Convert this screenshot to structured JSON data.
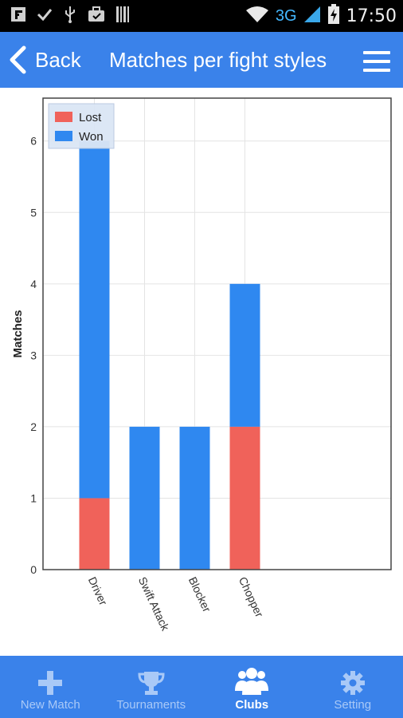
{
  "status_bar": {
    "time": "17:50",
    "network": "3G",
    "icons": [
      "flipboard-icon",
      "check-icon",
      "usb-icon",
      "briefcase-icon",
      "barcode-icon",
      "wifi-icon",
      "signal-icon",
      "battery-charging-icon"
    ]
  },
  "header": {
    "back_label": "Back",
    "title": "Matches per fight styles"
  },
  "colors": {
    "header_bg": "#3a82ea",
    "lost": "#f0625a",
    "won": "#2f88f0"
  },
  "chart_data": {
    "type": "bar",
    "stacked": true,
    "categories": [
      "Driver",
      "Swift Attack",
      "Blocker",
      "Chopper"
    ],
    "series": [
      {
        "name": "Lost",
        "color": "#f0625a",
        "values": [
          1,
          0,
          0,
          2
        ]
      },
      {
        "name": "Won",
        "color": "#2f88f0",
        "values": [
          5,
          2,
          2,
          2
        ]
      }
    ],
    "ylabel": "Matches",
    "xlabel": "",
    "ylim": [
      0,
      6.6
    ],
    "yticks": [
      0,
      1,
      2,
      3,
      4,
      5,
      6
    ],
    "grid": true,
    "legend_position": "top-left"
  },
  "bottom_nav": {
    "items": [
      {
        "label": "New Match",
        "icon": "plus-icon",
        "active": false
      },
      {
        "label": "Tournaments",
        "icon": "trophy-icon",
        "active": false
      },
      {
        "label": "Clubs",
        "icon": "people-icon",
        "active": true
      },
      {
        "label": "Setting",
        "icon": "gear-icon",
        "active": false
      }
    ]
  }
}
